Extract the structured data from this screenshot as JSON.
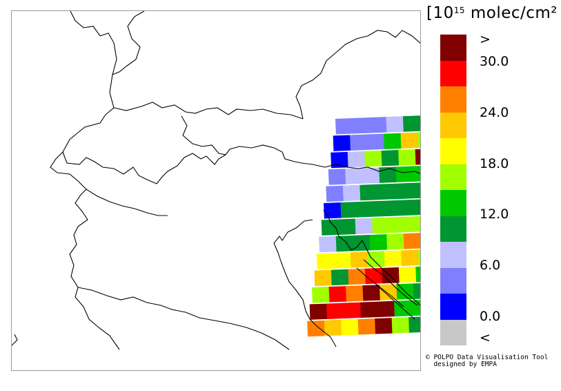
{
  "legend": {
    "unit_prefix": "[10",
    "unit_exponent": "15",
    "unit_suffix": " molec/cm² ]",
    "colors": [
      "#800000",
      "#ff0000",
      "#ff8000",
      "#ffc800",
      "#ffff00",
      "#a0ff00",
      "#00c800",
      "#009632",
      "#c0c0ff",
      "#8080ff",
      "#0000ff",
      "#c8c8c8"
    ],
    "tick_labels": [
      ">",
      "30.0",
      "24.0",
      "18.0",
      "12.0",
      "6.0",
      "0.0",
      "<"
    ]
  },
  "credit": {
    "line1": "© POLPO Data Visualisation Tool",
    "line2": "  designed by EMPA"
  },
  "swath": {
    "rows": [
      [
        9,
        9,
        9,
        8,
        7
      ],
      [
        10,
        9,
        9,
        6,
        3,
        5
      ],
      [
        10,
        8,
        5,
        7,
        5,
        0
      ],
      [
        9,
        8,
        8,
        7,
        6,
        6
      ],
      [
        9,
        8,
        7,
        7,
        7,
        7
      ],
      [
        10,
        7,
        7,
        7,
        7,
        7
      ],
      [
        7,
        7,
        8,
        5,
        5,
        5
      ],
      [
        8,
        7,
        7,
        6,
        5,
        2,
        3
      ],
      [
        4,
        4,
        3,
        5,
        4,
        3,
        5
      ],
      [
        3,
        7,
        2,
        1,
        0,
        4,
        6
      ],
      [
        5,
        1,
        2,
        0,
        3,
        6,
        7
      ],
      [
        0,
        1,
        1,
        0,
        0,
        6,
        6
      ],
      [
        2,
        3,
        4,
        2,
        0,
        5,
        7,
        9
      ]
    ]
  }
}
